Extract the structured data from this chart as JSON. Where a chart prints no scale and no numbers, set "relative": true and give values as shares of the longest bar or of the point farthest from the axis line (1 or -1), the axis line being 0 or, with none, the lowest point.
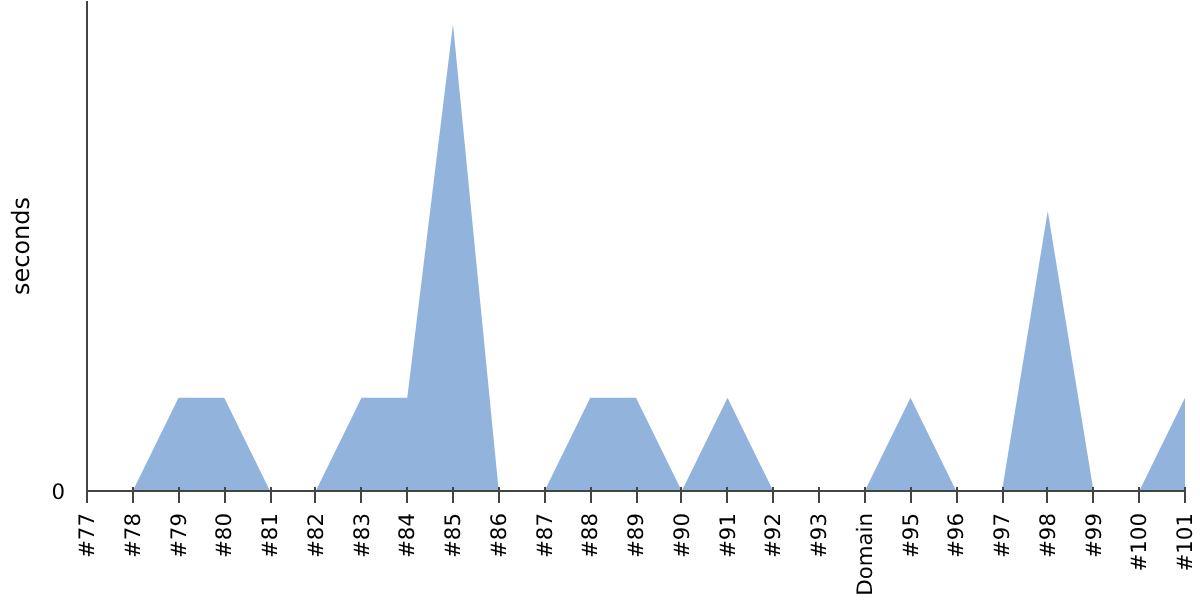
{
  "chart_data": {
    "type": "area",
    "ylabel": "seconds",
    "relative": true,
    "grid": false,
    "annotations": [
      "0"
    ],
    "categories": [
      "#77",
      "#78",
      "#79",
      "#80",
      "#81",
      "#82",
      "#83",
      "#84",
      "#85",
      "#86",
      "#87",
      "#88",
      "#89",
      "#90",
      "#91",
      "#92",
      "#93",
      "Domain",
      "#95",
      "#96",
      "#97",
      "#98",
      "#99",
      "#100",
      "#101"
    ],
    "series": [
      {
        "color": "#92b3dc",
        "values": [
          0,
          0,
          0.2,
          0.2,
          0,
          0,
          0.2,
          0.2,
          1,
          0,
          0,
          0.2,
          0.2,
          0,
          0.2,
          0,
          0,
          0,
          0.2,
          0,
          0,
          0.6,
          0,
          0,
          0.2
        ]
      }
    ]
  }
}
